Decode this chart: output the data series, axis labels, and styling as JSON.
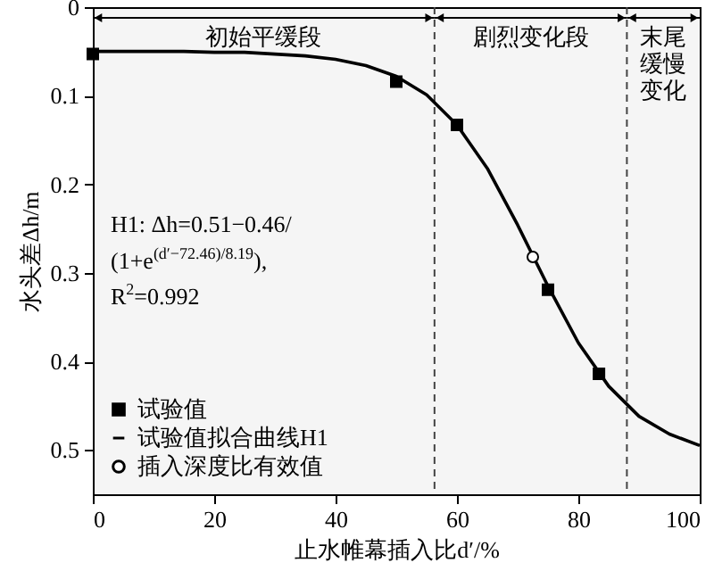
{
  "chart_data": {
    "type": "scatter",
    "xlabel": "止水帷幕插入比d′/%",
    "ylabel": "水头差Δh/m",
    "xlim": [
      0,
      100
    ],
    "xticks": [
      0,
      20,
      40,
      60,
      80,
      100
    ],
    "ylim": [
      0.55,
      0
    ],
    "yticks": [
      0,
      0.1,
      0.2,
      0.3,
      0.4,
      0.5
    ],
    "grid": false,
    "legend": "bottom left",
    "series": [
      {
        "name": "试验值",
        "marker": "square",
        "color": "#000000",
        "x": [
          0,
          50,
          60,
          75,
          83.4
        ],
        "values": [
          0.053,
          0.084,
          0.133,
          0.319,
          0.414
        ]
      },
      {
        "name": "试验值拟合曲线H1",
        "type": "line",
        "color": "#000000",
        "x": [
          0,
          5,
          10,
          15,
          20,
          25,
          30,
          35,
          40,
          45,
          50,
          55,
          60,
          65,
          70,
          75,
          80,
          85,
          90,
          95,
          100
        ],
        "values": [
          0.05,
          0.05,
          0.05,
          0.05,
          0.051,
          0.051,
          0.053,
          0.055,
          0.059,
          0.066,
          0.078,
          0.099,
          0.133,
          0.182,
          0.246,
          0.315,
          0.379,
          0.428,
          0.462,
          0.482,
          0.495
        ]
      },
      {
        "name": "插入深度比有效值",
        "marker": "circle",
        "color": "#000000",
        "x": [
          72.5
        ],
        "values": [
          0.282
        ]
      }
    ],
    "ref_lines": [
      {
        "axis": "x",
        "value": 56.3,
        "line_style": "dashed"
      },
      {
        "axis": "x",
        "value": 88,
        "line_style": "dashed"
      }
    ],
    "bands": [
      {
        "axis": "x",
        "from": 0,
        "to": 56.3,
        "label": "初始平缓段"
      },
      {
        "axis": "x",
        "from": 56.3,
        "to": 88,
        "label": "剧烈变化段"
      },
      {
        "axis": "x",
        "from": 88,
        "to": 100,
        "label": "末尾缓慢变化"
      }
    ],
    "annotations": [
      "H1: Δh=0.51−0.46/\n(1+e$^{(d′−72.46)/8.19}$),\nR$^{2}$=0.992"
    ]
  }
}
